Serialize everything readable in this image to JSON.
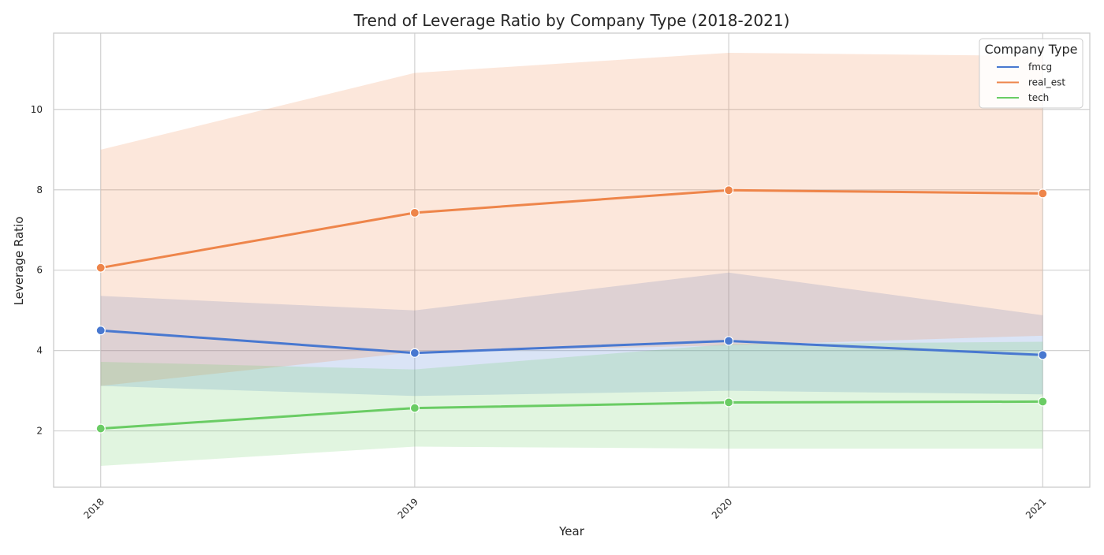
{
  "chart_data": {
    "type": "line",
    "title": "Trend of Leverage Ratio by Company Type (2018-2021)",
    "xlabel": "Year",
    "ylabel": "Leverage Ratio",
    "x": [
      2018,
      2019,
      2020,
      2021
    ],
    "x_tick_labels": [
      "2018",
      "2019",
      "2020",
      "2021"
    ],
    "x_tick_rotation_deg": 45,
    "xlim": [
      2017.85,
      2021.15
    ],
    "ylim": [
      0.6,
      11.9
    ],
    "y_ticks": [
      2,
      4,
      6,
      8,
      10
    ],
    "y_tick_labels": [
      "2",
      "4",
      "6",
      "8",
      "10"
    ],
    "grid": true,
    "legend": {
      "title": "Company Type",
      "placement": "top-right"
    },
    "series": [
      {
        "name": "fmcg",
        "color": "#4878d0",
        "values": [
          4.5,
          3.94,
          4.24,
          3.89
        ],
        "ci_lower": [
          3.12,
          2.87,
          3.0,
          2.91
        ],
        "ci_upper": [
          5.36,
          5.0,
          5.94,
          4.88
        ]
      },
      {
        "name": "real_est",
        "color": "#ee854a",
        "values": [
          6.06,
          7.43,
          7.99,
          7.91
        ],
        "ci_lower": [
          3.12,
          3.96,
          4.13,
          4.37
        ],
        "ci_upper": [
          9.0,
          10.91,
          11.41,
          11.33
        ]
      },
      {
        "name": "tech",
        "color": "#6acc64",
        "values": [
          2.06,
          2.57,
          2.71,
          2.73
        ],
        "ci_lower": [
          1.13,
          1.61,
          1.56,
          1.56
        ],
        "ci_upper": [
          3.72,
          3.53,
          4.16,
          4.22
        ]
      }
    ]
  }
}
